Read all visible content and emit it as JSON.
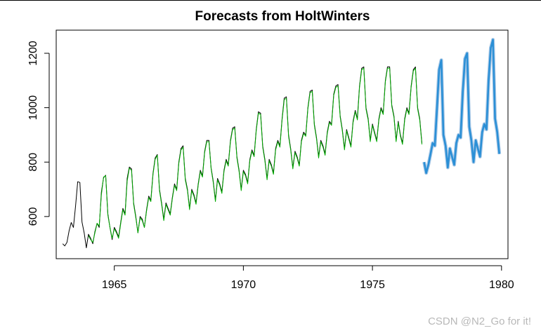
{
  "chart_data": {
    "type": "line",
    "title": "Forecasts from HoltWinters",
    "xlabel": "",
    "ylabel": "",
    "xlim": [
      1962.75,
      1980.25
    ],
    "ylim": [
      445,
      1285
    ],
    "x_ticks": [
      1965,
      1970,
      1975,
      1980
    ],
    "y_ticks": [
      600,
      800,
      1000,
      1200
    ],
    "grid": false,
    "legend": "none",
    "series": [
      {
        "role": "observed",
        "color": "#000000",
        "start": 1963.0,
        "step": 0.08333,
        "values": [
          500,
          492,
          505,
          548,
          578,
          560,
          640,
          728,
          725,
          580,
          540,
          485,
          535,
          520,
          500,
          545,
          575,
          560,
          690,
          742,
          752,
          610,
          560,
          515,
          560,
          545,
          525,
          580,
          630,
          610,
          740,
          782,
          775,
          650,
          600,
          540,
          600,
          590,
          560,
          625,
          675,
          660,
          760,
          815,
          828,
          700,
          650,
          590,
          650,
          630,
          610,
          670,
          720,
          700,
          800,
          850,
          860,
          740,
          700,
          630,
          700,
          680,
          650,
          720,
          770,
          750,
          840,
          880,
          880,
          780,
          730,
          660,
          740,
          720,
          690,
          770,
          810,
          790,
          880,
          925,
          930,
          820,
          770,
          700,
          770,
          755,
          725,
          810,
          845,
          825,
          920,
          985,
          980,
          860,
          810,
          740,
          810,
          790,
          760,
          850,
          880,
          860,
          960,
          1035,
          1040,
          900,
          850,
          780,
          840,
          820,
          790,
          880,
          910,
          900,
          1000,
          1060,
          1065,
          940,
          890,
          820,
          880,
          860,
          830,
          910,
          950,
          940,
          1050,
          1080,
          1085,
          970,
          920,
          850,
          920,
          890,
          860,
          950,
          990,
          960,
          1080,
          1145,
          1150,
          1000,
          960,
          880,
          940,
          910,
          880,
          960,
          1000,
          980,
          1100,
          1150,
          1150,
          1010,
          970,
          880,
          950,
          900,
          870,
          960,
          1000,
          980,
          1080,
          1140,
          1150,
          1000,
          960,
          870
        ]
      },
      {
        "role": "fitted",
        "color": "#00aa00",
        "start": 1964.0,
        "step": 0.08333,
        "values": [
          530,
          515,
          505,
          540,
          575,
          565,
          680,
          745,
          750,
          605,
          560,
          520,
          555,
          540,
          520,
          575,
          625,
          605,
          730,
          778,
          770,
          645,
          595,
          540,
          595,
          585,
          560,
          620,
          670,
          655,
          755,
          810,
          825,
          695,
          645,
          585,
          645,
          625,
          605,
          665,
          715,
          695,
          795,
          845,
          855,
          735,
          695,
          625,
          695,
          675,
          645,
          715,
          765,
          745,
          835,
          875,
          875,
          775,
          725,
          655,
          735,
          715,
          685,
          765,
          805,
          785,
          875,
          920,
          925,
          815,
          765,
          695,
          765,
          750,
          720,
          805,
          840,
          820,
          915,
          980,
          975,
          855,
          805,
          735,
          805,
          785,
          755,
          845,
          875,
          855,
          955,
          1030,
          1035,
          895,
          845,
          775,
          835,
          815,
          785,
          875,
          905,
          895,
          995,
          1055,
          1060,
          935,
          885,
          815,
          875,
          855,
          825,
          905,
          945,
          935,
          1045,
          1075,
          1080,
          965,
          915,
          845,
          915,
          885,
          855,
          945,
          985,
          955,
          1075,
          1140,
          1145,
          995,
          955,
          875,
          935,
          905,
          875,
          955,
          995,
          975,
          1095,
          1145,
          1145,
          1005,
          965,
          875,
          945,
          895,
          865,
          955,
          995,
          975,
          1075,
          1135,
          1145,
          995,
          955,
          865
        ]
      },
      {
        "role": "forecast",
        "color": "#2a8fd6",
        "start": 1977.0,
        "step": 0.08333,
        "values": [
          800,
          760,
          790,
          830,
          870,
          860,
          1000,
          1140,
          1175,
          900,
          860,
          780,
          850,
          820,
          790,
          870,
          900,
          890,
          1060,
          1180,
          1200,
          930,
          880,
          800,
          880,
          850,
          820,
          910,
          940,
          920,
          1100,
          1220,
          1250,
          960,
          910,
          830
        ]
      }
    ]
  },
  "watermark": "CSDN @N2_Go for it!"
}
